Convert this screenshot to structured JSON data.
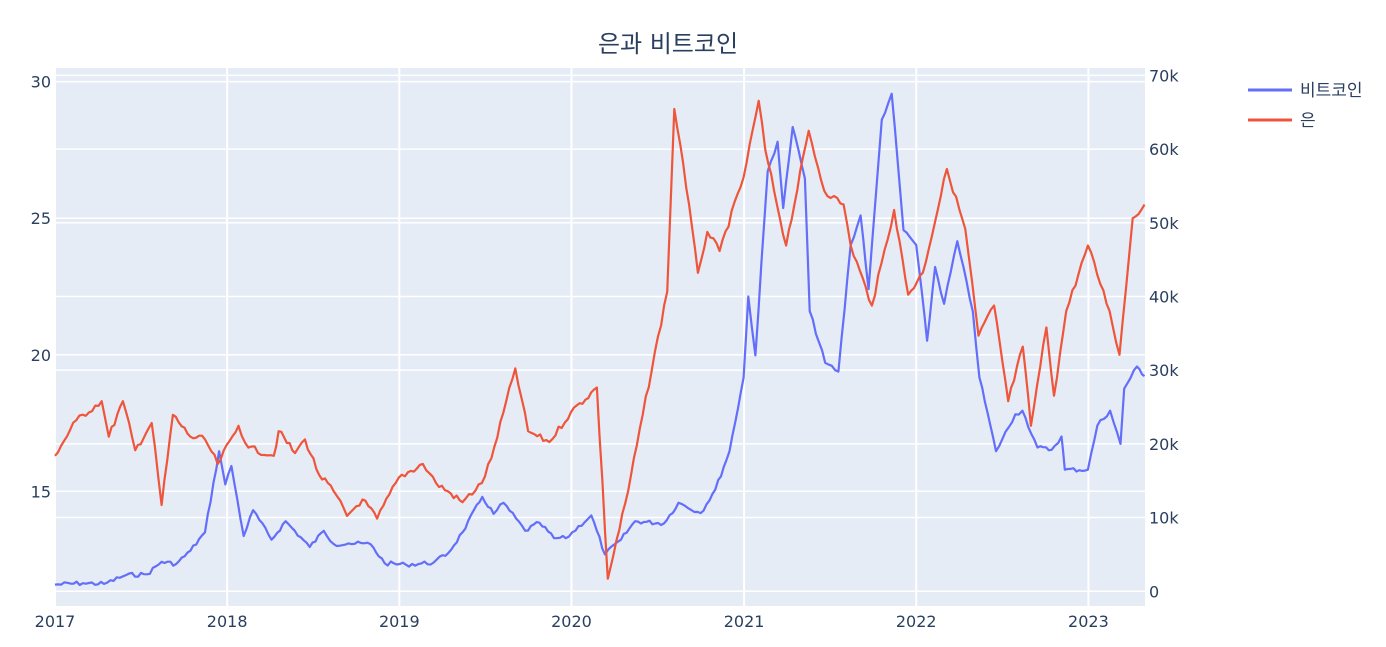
{
  "chart_data": {
    "type": "line",
    "title": "은과 비트코인",
    "x_range": [
      "2017-01-01",
      "2023-05-01"
    ],
    "x_ticks": [
      "2017",
      "2018",
      "2019",
      "2020",
      "2021",
      "2022",
      "2023"
    ],
    "y_left": {
      "range": [
        10.8,
        30.5
      ],
      "ticks": [
        "15",
        "20",
        "25",
        "30"
      ]
    },
    "y_right": {
      "range": [
        -2000,
        71000
      ],
      "ticks": [
        "0",
        "10k",
        "20k",
        "30k",
        "40k",
        "50k",
        "60k",
        "70k"
      ]
    },
    "legend_position": "top-right",
    "background": "#e5ecf6",
    "grid": true,
    "series": [
      {
        "name": "비트코인",
        "axis": "right",
        "color": "#636efa",
        "points": [
          [
            "2017-01-01",
            900
          ],
          [
            "2017-03-01",
            1100
          ],
          [
            "2017-04-15",
            1000
          ],
          [
            "2017-06-01",
            2200
          ],
          [
            "2017-07-15",
            2300
          ],
          [
            "2017-08-15",
            4000
          ],
          [
            "2017-09-15",
            3700
          ],
          [
            "2017-10-15",
            5500
          ],
          [
            "2017-11-15",
            8000
          ],
          [
            "2017-12-15",
            19000
          ],
          [
            "2017-12-28",
            14500
          ],
          [
            "2018-01-10",
            17000
          ],
          [
            "2018-02-05",
            7500
          ],
          [
            "2018-02-25",
            11000
          ],
          [
            "2018-04-05",
            7000
          ],
          [
            "2018-05-05",
            9500
          ],
          [
            "2018-06-25",
            6000
          ],
          [
            "2018-07-25",
            8200
          ],
          [
            "2018-08-15",
            6400
          ],
          [
            "2018-09-15",
            6500
          ],
          [
            "2018-11-01",
            6400
          ],
          [
            "2018-12-01",
            3800
          ],
          [
            "2019-01-15",
            3600
          ],
          [
            "2019-03-15",
            3900
          ],
          [
            "2019-04-15",
            5200
          ],
          [
            "2019-05-15",
            8000
          ],
          [
            "2019-06-26",
            12800
          ],
          [
            "2019-07-20",
            10500
          ],
          [
            "2019-08-10",
            12000
          ],
          [
            "2019-09-25",
            8200
          ],
          [
            "2019-10-25",
            9300
          ],
          [
            "2019-11-25",
            7200
          ],
          [
            "2019-12-20",
            7200
          ],
          [
            "2020-02-12",
            10300
          ],
          [
            "2020-03-12",
            5000
          ],
          [
            "2020-04-15",
            7000
          ],
          [
            "2020-05-15",
            9500
          ],
          [
            "2020-07-15",
            9200
          ],
          [
            "2020-08-15",
            12000
          ],
          [
            "2020-10-01",
            10600
          ],
          [
            "2020-11-01",
            13800
          ],
          [
            "2020-12-01",
            19000
          ],
          [
            "2020-12-31",
            29000
          ],
          [
            "2021-01-10",
            40000
          ],
          [
            "2021-01-25",
            32000
          ],
          [
            "2021-02-20",
            57000
          ],
          [
            "2021-03-13",
            61000
          ],
          [
            "2021-03-25",
            52000
          ],
          [
            "2021-04-14",
            63000
          ],
          [
            "2021-05-10",
            56000
          ],
          [
            "2021-05-20",
            38000
          ],
          [
            "2021-06-22",
            31000
          ],
          [
            "2021-07-20",
            29800
          ],
          [
            "2021-08-15",
            47000
          ],
          [
            "2021-09-05",
            51000
          ],
          [
            "2021-09-22",
            41000
          ],
          [
            "2021-10-20",
            64000
          ],
          [
            "2021-11-10",
            67500
          ],
          [
            "2021-12-05",
            49000
          ],
          [
            "2022-01-01",
            47000
          ],
          [
            "2022-01-24",
            34000
          ],
          [
            "2022-02-10",
            44000
          ],
          [
            "2022-03-01",
            39000
          ],
          [
            "2022-03-29",
            47500
          ],
          [
            "2022-05-01",
            38000
          ],
          [
            "2022-05-15",
            29000
          ],
          [
            "2022-06-19",
            19000
          ],
          [
            "2022-07-30",
            24000
          ],
          [
            "2022-08-14",
            24500
          ],
          [
            "2022-09-15",
            19500
          ],
          [
            "2022-10-15",
            19200
          ],
          [
            "2022-11-05",
            21000
          ],
          [
            "2022-11-12",
            16500
          ],
          [
            "2022-12-31",
            16500
          ],
          [
            "2023-01-20",
            22500
          ],
          [
            "2023-02-16",
            24500
          ],
          [
            "2023-03-10",
            20000
          ],
          [
            "2023-03-18",
            27500
          ],
          [
            "2023-04-14",
            30500
          ],
          [
            "2023-04-30",
            29200
          ]
        ]
      },
      {
        "name": "은",
        "axis": "left",
        "color": "#ef553b",
        "points": [
          [
            "2017-01-01",
            16.3
          ],
          [
            "2017-02-15",
            17.6
          ],
          [
            "2017-04-10",
            18.3
          ],
          [
            "2017-04-25",
            17.0
          ],
          [
            "2017-05-25",
            18.3
          ],
          [
            "2017-06-20",
            16.5
          ],
          [
            "2017-07-25",
            17.5
          ],
          [
            "2017-08-15",
            14.5
          ],
          [
            "2017-09-08",
            17.8
          ],
          [
            "2017-10-15",
            17.0
          ],
          [
            "2017-11-15",
            16.9
          ],
          [
            "2017-12-12",
            16.0
          ],
          [
            "2018-01-25",
            17.4
          ],
          [
            "2018-02-15",
            16.6
          ],
          [
            "2018-04-10",
            16.3
          ],
          [
            "2018-04-20",
            17.2
          ],
          [
            "2018-05-25",
            16.4
          ],
          [
            "2018-06-15",
            16.9
          ],
          [
            "2018-07-15",
            15.6
          ],
          [
            "2018-08-15",
            15.0
          ],
          [
            "2018-09-12",
            14.1
          ],
          [
            "2018-10-15",
            14.7
          ],
          [
            "2018-11-15",
            14.0
          ],
          [
            "2018-12-31",
            15.5
          ],
          [
            "2019-02-20",
            16.0
          ],
          [
            "2019-03-20",
            15.3
          ],
          [
            "2019-05-15",
            14.6
          ],
          [
            "2019-06-25",
            15.3
          ],
          [
            "2019-07-15",
            16.2
          ],
          [
            "2019-09-04",
            19.5
          ],
          [
            "2019-10-01",
            17.2
          ],
          [
            "2019-11-15",
            16.8
          ],
          [
            "2019-12-31",
            17.9
          ],
          [
            "2020-02-24",
            18.8
          ],
          [
            "2020-03-18",
            11.8
          ],
          [
            "2020-04-30",
            15.0
          ],
          [
            "2020-05-31",
            17.8
          ],
          [
            "2020-07-22",
            22.3
          ],
          [
            "2020-08-06",
            29.0
          ],
          [
            "2020-08-25",
            27.0
          ],
          [
            "2020-09-25",
            23.0
          ],
          [
            "2020-10-15",
            24.5
          ],
          [
            "2020-11-10",
            23.8
          ],
          [
            "2020-12-31",
            26.5
          ],
          [
            "2021-02-01",
            29.3
          ],
          [
            "2021-02-15",
            27.5
          ],
          [
            "2021-03-31",
            24.0
          ],
          [
            "2021-05-18",
            28.2
          ],
          [
            "2021-06-20",
            26.0
          ],
          [
            "2021-07-31",
            25.5
          ],
          [
            "2021-08-15",
            24.0
          ],
          [
            "2021-09-29",
            21.8
          ],
          [
            "2021-11-15",
            25.3
          ],
          [
            "2021-12-15",
            22.2
          ],
          [
            "2022-01-15",
            23.0
          ],
          [
            "2022-03-07",
            26.8
          ],
          [
            "2022-04-15",
            24.6
          ],
          [
            "2022-05-13",
            20.7
          ],
          [
            "2022-06-15",
            21.8
          ],
          [
            "2022-07-15",
            18.3
          ],
          [
            "2022-08-15",
            20.3
          ],
          [
            "2022-09-01",
            17.4
          ],
          [
            "2022-10-04",
            21.0
          ],
          [
            "2022-10-20",
            18.5
          ],
          [
            "2022-11-15",
            21.6
          ],
          [
            "2022-12-31",
            24.0
          ],
          [
            "2023-02-15",
            21.6
          ],
          [
            "2023-03-08",
            20.0
          ],
          [
            "2023-04-05",
            25.0
          ],
          [
            "2023-04-30",
            25.5
          ]
        ]
      }
    ]
  }
}
